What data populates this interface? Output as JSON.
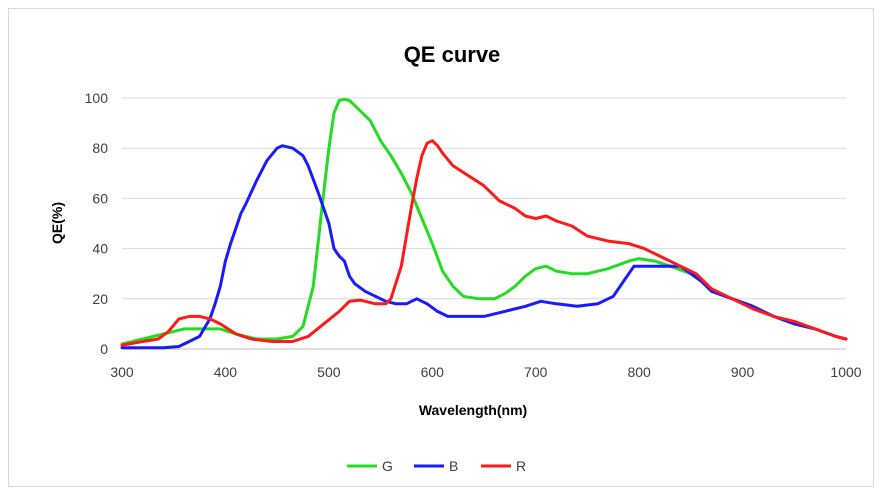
{
  "chart_data": {
    "type": "line",
    "title": "QE curve",
    "xlabel": "Wavelength(nm)",
    "ylabel": "QE(%)",
    "xlim": [
      300,
      1000
    ],
    "ylim": [
      0,
      100
    ],
    "x_ticks": [
      300,
      400,
      500,
      600,
      700,
      800,
      900,
      1000
    ],
    "y_ticks": [
      0,
      20,
      40,
      60,
      80,
      100
    ],
    "grid": "horizontal",
    "legend": "bottom",
    "series": [
      {
        "name": "G",
        "color": "#22dd22",
        "points": [
          [
            300,
            2
          ],
          [
            320,
            4
          ],
          [
            340,
            6
          ],
          [
            360,
            8
          ],
          [
            380,
            8
          ],
          [
            395,
            8
          ],
          [
            410,
            6
          ],
          [
            430,
            4
          ],
          [
            450,
            4
          ],
          [
            465,
            5
          ],
          [
            475,
            9
          ],
          [
            485,
            25
          ],
          [
            493,
            55
          ],
          [
            500,
            80
          ],
          [
            505,
            94
          ],
          [
            510,
            99
          ],
          [
            515,
            99.5
          ],
          [
            520,
            99
          ],
          [
            525,
            97
          ],
          [
            530,
            95
          ],
          [
            540,
            91
          ],
          [
            550,
            83
          ],
          [
            560,
            77
          ],
          [
            570,
            70
          ],
          [
            580,
            62
          ],
          [
            590,
            52
          ],
          [
            600,
            42
          ],
          [
            610,
            31
          ],
          [
            620,
            25
          ],
          [
            630,
            21
          ],
          [
            645,
            20
          ],
          [
            660,
            20
          ],
          [
            670,
            22
          ],
          [
            680,
            25
          ],
          [
            690,
            29
          ],
          [
            700,
            32
          ],
          [
            710,
            33
          ],
          [
            720,
            31
          ],
          [
            735,
            30
          ],
          [
            750,
            30
          ],
          [
            770,
            32
          ],
          [
            790,
            35
          ],
          [
            800,
            36
          ],
          [
            815,
            35
          ],
          [
            830,
            33
          ],
          [
            850,
            30
          ],
          [
            870,
            24
          ],
          [
            890,
            20
          ],
          [
            910,
            17
          ],
          [
            930,
            13
          ],
          [
            950,
            10
          ],
          [
            970,
            8
          ],
          [
            990,
            5
          ],
          [
            1000,
            4
          ]
        ]
      },
      {
        "name": "B",
        "color": "#1a1aff",
        "points": [
          [
            300,
            0.5
          ],
          [
            320,
            0.5
          ],
          [
            340,
            0.5
          ],
          [
            355,
            1
          ],
          [
            365,
            3
          ],
          [
            375,
            5
          ],
          [
            385,
            12
          ],
          [
            390,
            18
          ],
          [
            395,
            25
          ],
          [
            400,
            35
          ],
          [
            405,
            42
          ],
          [
            410,
            48
          ],
          [
            415,
            54
          ],
          [
            420,
            58
          ],
          [
            430,
            67
          ],
          [
            440,
            75
          ],
          [
            450,
            80
          ],
          [
            455,
            81
          ],
          [
            465,
            80
          ],
          [
            475,
            77
          ],
          [
            480,
            73
          ],
          [
            490,
            62
          ],
          [
            500,
            50
          ],
          [
            505,
            40
          ],
          [
            510,
            37
          ],
          [
            515,
            35
          ],
          [
            520,
            29
          ],
          [
            525,
            26
          ],
          [
            535,
            23
          ],
          [
            545,
            21
          ],
          [
            555,
            19
          ],
          [
            565,
            18
          ],
          [
            575,
            18
          ],
          [
            585,
            20
          ],
          [
            595,
            18
          ],
          [
            605,
            15
          ],
          [
            615,
            13
          ],
          [
            630,
            13
          ],
          [
            650,
            13
          ],
          [
            670,
            15
          ],
          [
            690,
            17
          ],
          [
            705,
            19
          ],
          [
            720,
            18
          ],
          [
            740,
            17
          ],
          [
            760,
            18
          ],
          [
            775,
            21
          ],
          [
            785,
            27
          ],
          [
            795,
            33
          ],
          [
            810,
            33
          ],
          [
            825,
            33
          ],
          [
            840,
            33
          ],
          [
            850,
            30
          ],
          [
            860,
            27
          ],
          [
            870,
            23
          ],
          [
            890,
            20
          ],
          [
            910,
            17
          ],
          [
            930,
            13
          ],
          [
            950,
            10
          ],
          [
            970,
            8
          ],
          [
            990,
            5
          ],
          [
            1000,
            4
          ]
        ]
      },
      {
        "name": "R",
        "color": "#ff1a1a",
        "points": [
          [
            300,
            1.5
          ],
          [
            320,
            3
          ],
          [
            335,
            4
          ],
          [
            345,
            7
          ],
          [
            355,
            12
          ],
          [
            365,
            13
          ],
          [
            375,
            13
          ],
          [
            385,
            12
          ],
          [
            395,
            10
          ],
          [
            410,
            6
          ],
          [
            425,
            4
          ],
          [
            445,
            3
          ],
          [
            465,
            3
          ],
          [
            480,
            5
          ],
          [
            495,
            10
          ],
          [
            510,
            15
          ],
          [
            520,
            19
          ],
          [
            530,
            19.5
          ],
          [
            545,
            18
          ],
          [
            555,
            18
          ],
          [
            560,
            20
          ],
          [
            570,
            33
          ],
          [
            575,
            45
          ],
          [
            580,
            57
          ],
          [
            585,
            68
          ],
          [
            590,
            77
          ],
          [
            595,
            82
          ],
          [
            600,
            83
          ],
          [
            605,
            81
          ],
          [
            610,
            78
          ],
          [
            620,
            73
          ],
          [
            635,
            69
          ],
          [
            650,
            65
          ],
          [
            665,
            59
          ],
          [
            680,
            56
          ],
          [
            690,
            53
          ],
          [
            700,
            52
          ],
          [
            710,
            53
          ],
          [
            720,
            51
          ],
          [
            735,
            49
          ],
          [
            750,
            45
          ],
          [
            770,
            43
          ],
          [
            790,
            42
          ],
          [
            805,
            40
          ],
          [
            820,
            37
          ],
          [
            840,
            33
          ],
          [
            855,
            30
          ],
          [
            870,
            24
          ],
          [
            890,
            20
          ],
          [
            910,
            16
          ],
          [
            930,
            13
          ],
          [
            950,
            11
          ],
          [
            970,
            8
          ],
          [
            990,
            5
          ],
          [
            1000,
            4
          ]
        ]
      }
    ]
  }
}
